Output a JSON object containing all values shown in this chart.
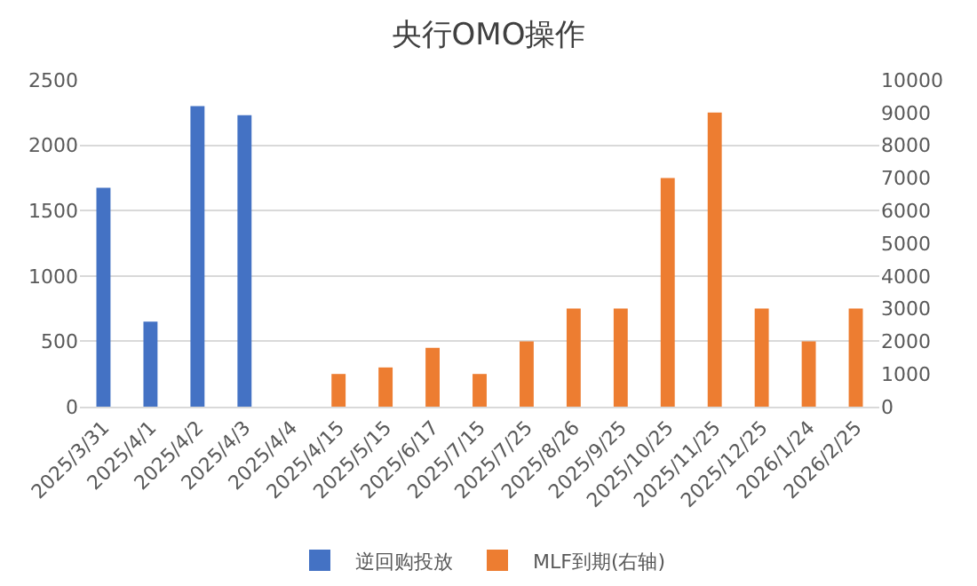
{
  "chart_data": {
    "type": "bar",
    "title": "央行OMO操作",
    "categories": [
      "2025/3/31",
      "2025/4/1",
      "2025/4/2",
      "2025/4/3",
      "2025/4/4",
      "2025/4/15",
      "2025/5/15",
      "2025/6/17",
      "2025/7/15",
      "2025/7/25",
      "2025/8/26",
      "2025/9/25",
      "2025/10/25",
      "2025/11/25",
      "2025/12/25",
      "2026/1/24",
      "2026/2/25"
    ],
    "series": [
      {
        "name": "逆回购投放",
        "color": "#4472c4",
        "values": [
          1675,
          650,
          2300,
          2230,
          null,
          null,
          null,
          null,
          null,
          null,
          null,
          null,
          null,
          null,
          null,
          null,
          null
        ]
      },
      {
        "name": "MLF到期(右轴)",
        "color": "#ed7d31",
        "axis": "y2",
        "values": [
          null,
          null,
          null,
          null,
          null,
          1000,
          1200,
          1800,
          1000,
          2000,
          3000,
          3000,
          7000,
          9000,
          3000,
          2000,
          3000
        ]
      }
    ],
    "ylim": [
      0,
      2500
    ],
    "yticks": [
      0,
      500,
      1000,
      1500,
      2000,
      2500
    ],
    "y2lim": [
      0,
      10000
    ],
    "y2ticks": [
      0,
      1000,
      2000,
      3000,
      4000,
      5000,
      6000,
      7000,
      8000,
      9000,
      10000
    ],
    "grid": "y",
    "legend": "bottom"
  }
}
